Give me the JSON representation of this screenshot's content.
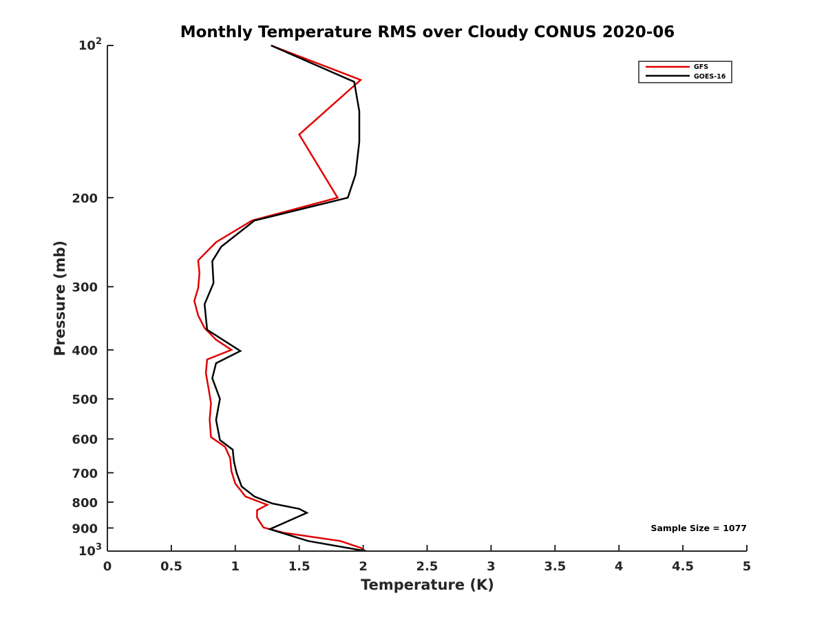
{
  "chart_data": {
    "type": "line",
    "title": "Monthly Temperature RMS over Cloudy CONUS  2020-06",
    "xlabel": "Temperature (K)",
    "ylabel": "Pressure (mb)",
    "xlim": [
      0,
      5
    ],
    "ylim": [
      100,
      1000
    ],
    "y_scale": "log",
    "y_reversed": true,
    "x_ticks": [
      {
        "value": 0,
        "label": "0"
      },
      {
        "value": 0.5,
        "label": "0.5"
      },
      {
        "value": 1,
        "label": "1"
      },
      {
        "value": 1.5,
        "label": "1.5"
      },
      {
        "value": 2,
        "label": "2"
      },
      {
        "value": 2.5,
        "label": "2.5"
      },
      {
        "value": 3,
        "label": "3"
      },
      {
        "value": 3.5,
        "label": "3.5"
      },
      {
        "value": 4,
        "label": "4"
      },
      {
        "value": 4.5,
        "label": "4.5"
      },
      {
        "value": 5,
        "label": "5"
      }
    ],
    "y_ticks": [
      {
        "value": 100,
        "base": "10",
        "exp": "2"
      },
      {
        "value": 200,
        "label": "200"
      },
      {
        "value": 300,
        "label": "300"
      },
      {
        "value": 400,
        "label": "400"
      },
      {
        "value": 500,
        "label": "500"
      },
      {
        "value": 600,
        "label": "600"
      },
      {
        "value": 700,
        "label": "700"
      },
      {
        "value": 800,
        "label": "800"
      },
      {
        "value": 900,
        "label": "900"
      },
      {
        "value": 1000,
        "base": "10",
        "exp": "3"
      }
    ],
    "grid": false,
    "legend_position": "top-right",
    "series": [
      {
        "name": "GFS",
        "color": "#e00000",
        "points": [
          [
            1.28,
            100
          ],
          [
            1.98,
            117
          ],
          [
            1.5,
            150
          ],
          [
            1.8,
            200
          ],
          [
            1.13,
            222
          ],
          [
            0.85,
            245
          ],
          [
            0.71,
            266
          ],
          [
            0.72,
            282
          ],
          [
            0.71,
            302
          ],
          [
            0.68,
            320
          ],
          [
            0.71,
            342
          ],
          [
            0.76,
            362
          ],
          [
            0.85,
            382
          ],
          [
            0.97,
            400
          ],
          [
            0.78,
            418
          ],
          [
            0.77,
            445
          ],
          [
            0.79,
            475
          ],
          [
            0.81,
            510
          ],
          [
            0.8,
            550
          ],
          [
            0.81,
            595
          ],
          [
            0.92,
            622
          ],
          [
            0.96,
            655
          ],
          [
            0.97,
            695
          ],
          [
            1.0,
            735
          ],
          [
            1.08,
            780
          ],
          [
            1.25,
            810
          ],
          [
            1.17,
            830
          ],
          [
            1.17,
            858
          ],
          [
            1.22,
            898
          ],
          [
            1.38,
            920
          ],
          [
            1.82,
            955
          ],
          [
            1.98,
            985
          ],
          [
            2.02,
            1000
          ]
        ]
      },
      {
        "name": "GOES-16",
        "color": "#000000",
        "points": [
          [
            1.28,
            100
          ],
          [
            1.93,
            118
          ],
          [
            1.97,
            135
          ],
          [
            1.97,
            155
          ],
          [
            1.94,
            180
          ],
          [
            1.88,
            200
          ],
          [
            1.15,
            222
          ],
          [
            0.89,
            250
          ],
          [
            0.82,
            267
          ],
          [
            0.83,
            295
          ],
          [
            0.76,
            325
          ],
          [
            0.78,
            365
          ],
          [
            1.04,
            402
          ],
          [
            0.85,
            425
          ],
          [
            0.82,
            455
          ],
          [
            0.88,
            500
          ],
          [
            0.85,
            550
          ],
          [
            0.88,
            603
          ],
          [
            0.98,
            630
          ],
          [
            0.99,
            665
          ],
          [
            1.01,
            700
          ],
          [
            1.05,
            745
          ],
          [
            1.15,
            780
          ],
          [
            1.29,
            805
          ],
          [
            1.5,
            825
          ],
          [
            1.56,
            840
          ],
          [
            1.27,
            905
          ],
          [
            1.57,
            955
          ],
          [
            2.02,
            1000
          ]
        ]
      }
    ],
    "annotation": "Sample Size = 1077"
  }
}
